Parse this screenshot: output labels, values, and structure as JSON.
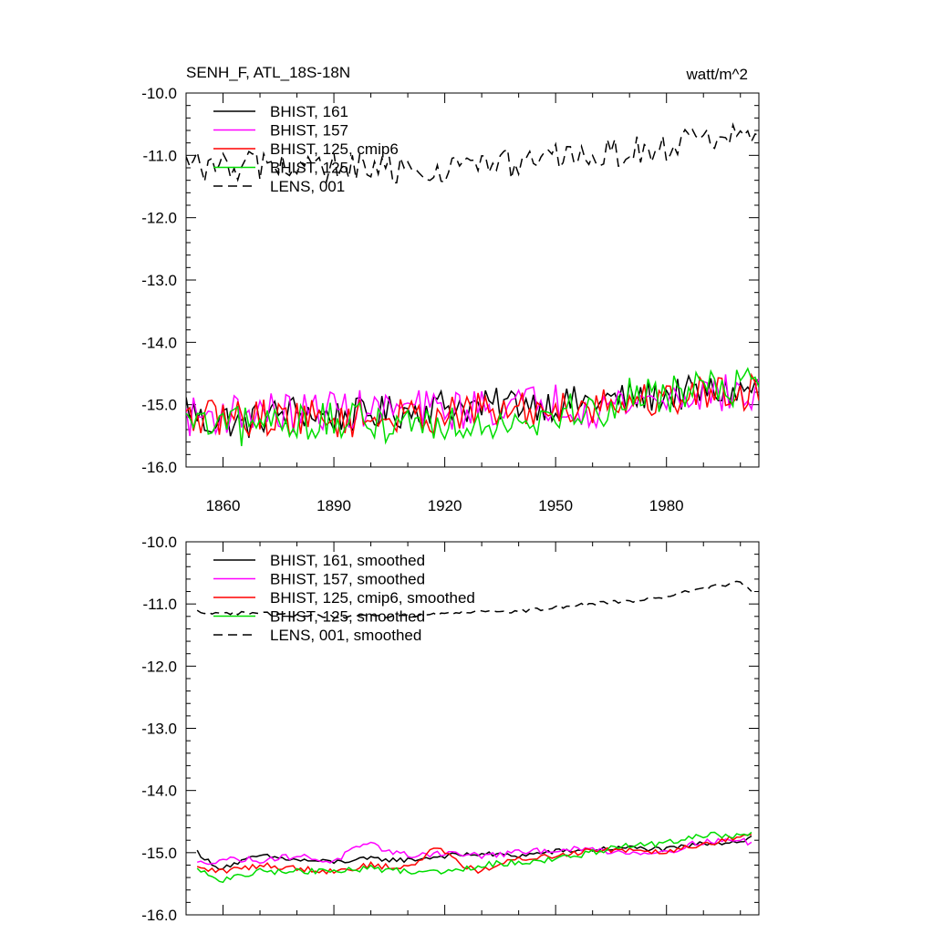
{
  "header": {
    "title": "SENH_F, ATL_18S-18N",
    "units": "watt/m^2"
  },
  "chart_data": [
    {
      "type": "line",
      "xlim": [
        1850,
        2005
      ],
      "ylim": [
        -16.0,
        -10.0
      ],
      "y_ticks": [
        "-10.0",
        "-11.0",
        "-12.0",
        "-13.0",
        "-14.0",
        "-15.0",
        "-16.0"
      ],
      "x_ticks": [
        "1860",
        "1890",
        "1920",
        "1950",
        "1980"
      ],
      "grid": false,
      "legend_position": "top-left",
      "series": [
        {
          "name": "BHIST, 161",
          "color": "#000000",
          "dash": false,
          "anchors": [
            [
              1850,
              -15.0
            ],
            [
              1855,
              -15.3
            ],
            [
              1860,
              -15.2
            ],
            [
              1865,
              -15.35
            ],
            [
              1870,
              -15.2
            ],
            [
              1880,
              -15.1
            ],
            [
              1890,
              -15.2
            ],
            [
              1900,
              -15.15
            ],
            [
              1910,
              -15.1
            ],
            [
              1920,
              -15.0
            ],
            [
              1930,
              -15.05
            ],
            [
              1940,
              -14.95
            ],
            [
              1950,
              -15.0
            ],
            [
              1960,
              -14.95
            ],
            [
              1970,
              -14.9
            ],
            [
              1980,
              -14.85
            ],
            [
              1990,
              -14.8
            ],
            [
              2000,
              -14.8
            ],
            [
              2005,
              -14.7
            ]
          ],
          "noise": 0.28
        },
        {
          "name": "BHIST, 157",
          "color": "#ff00ff",
          "dash": false,
          "anchors": [
            [
              1850,
              -15.2
            ],
            [
              1860,
              -15.15
            ],
            [
              1870,
              -15.1
            ],
            [
              1880,
              -15.15
            ],
            [
              1890,
              -15.05
            ],
            [
              1900,
              -15.1
            ],
            [
              1910,
              -15.05
            ],
            [
              1920,
              -15.1
            ],
            [
              1930,
              -15.05
            ],
            [
              1940,
              -15.0
            ],
            [
              1950,
              -14.95
            ],
            [
              1960,
              -15.05
            ],
            [
              1970,
              -14.95
            ],
            [
              1980,
              -14.9
            ],
            [
              1990,
              -14.8
            ],
            [
              2000,
              -14.85
            ],
            [
              2005,
              -14.85
            ]
          ],
          "noise": 0.32
        },
        {
          "name": "BHIST, 125, cmip6",
          "color": "#ff0000",
          "dash": false,
          "anchors": [
            [
              1850,
              -15.25
            ],
            [
              1860,
              -15.2
            ],
            [
              1870,
              -15.2
            ],
            [
              1880,
              -15.2
            ],
            [
              1890,
              -15.25
            ],
            [
              1900,
              -15.2
            ],
            [
              1910,
              -15.2
            ],
            [
              1920,
              -15.15
            ],
            [
              1930,
              -15.1
            ],
            [
              1940,
              -15.1
            ],
            [
              1950,
              -15.05
            ],
            [
              1960,
              -15.0
            ],
            [
              1970,
              -14.95
            ],
            [
              1980,
              -14.9
            ],
            [
              1990,
              -14.8
            ],
            [
              2000,
              -14.8
            ],
            [
              2005,
              -14.75
            ]
          ],
          "noise": 0.3
        },
        {
          "name": "BHIST, 125",
          "color": "#00dd00",
          "dash": false,
          "anchors": [
            [
              1850,
              -15.3
            ],
            [
              1860,
              -15.4
            ],
            [
              1870,
              -15.3
            ],
            [
              1880,
              -15.25
            ],
            [
              1890,
              -15.3
            ],
            [
              1900,
              -15.3
            ],
            [
              1910,
              -15.25
            ],
            [
              1920,
              -15.3
            ],
            [
              1930,
              -15.25
            ],
            [
              1940,
              -15.2
            ],
            [
              1950,
              -15.15
            ],
            [
              1960,
              -15.1
            ],
            [
              1970,
              -14.9
            ],
            [
              1980,
              -14.8
            ],
            [
              1990,
              -14.75
            ],
            [
              2000,
              -14.7
            ],
            [
              2005,
              -14.7
            ]
          ],
          "noise": 0.33
        },
        {
          "name": "LENS, 001",
          "color": "#000000",
          "dash": true,
          "anchors": [
            [
              1850,
              -11.15
            ],
            [
              1860,
              -11.2
            ],
            [
              1870,
              -11.15
            ],
            [
              1880,
              -11.2
            ],
            [
              1890,
              -11.2
            ],
            [
              1900,
              -11.25
            ],
            [
              1910,
              -11.25
            ],
            [
              1920,
              -11.2
            ],
            [
              1930,
              -11.15
            ],
            [
              1940,
              -11.15
            ],
            [
              1950,
              -11.05
            ],
            [
              1960,
              -11.0
            ],
            [
              1970,
              -10.95
            ],
            [
              1980,
              -10.85
            ],
            [
              1990,
              -10.75
            ],
            [
              2000,
              -10.65
            ],
            [
              2005,
              -10.8
            ]
          ],
          "noise": 0.25
        }
      ]
    },
    {
      "type": "line",
      "xlim": [
        1850,
        2005
      ],
      "ylim": [
        -16.0,
        -10.0
      ],
      "y_ticks": [
        "-10.0",
        "-11.0",
        "-12.0",
        "-13.0",
        "-14.0",
        "-15.0",
        "-16.0"
      ],
      "grid": false,
      "legend_position": "top-left",
      "series": [
        {
          "name": "BHIST, 161, smoothed",
          "color": "#000000",
          "dash": false,
          "anchors": [
            [
              1853,
              -14.98
            ],
            [
              1858,
              -15.25
            ],
            [
              1863,
              -15.18
            ],
            [
              1870,
              -15.05
            ],
            [
              1880,
              -15.12
            ],
            [
              1890,
              -15.15
            ],
            [
              1900,
              -15.1
            ],
            [
              1910,
              -15.12
            ],
            [
              1920,
              -15.05
            ],
            [
              1930,
              -15.02
            ],
            [
              1940,
              -15.05
            ],
            [
              1950,
              -14.98
            ],
            [
              1960,
              -14.95
            ],
            [
              1970,
              -14.92
            ],
            [
              1980,
              -14.95
            ],
            [
              1990,
              -14.85
            ],
            [
              2000,
              -14.82
            ],
            [
              2003,
              -14.75
            ]
          ],
          "noise": 0.04
        },
        {
          "name": "BHIST, 157, smoothed",
          "color": "#ff00ff",
          "dash": false,
          "anchors": [
            [
              1853,
              -15.18
            ],
            [
              1860,
              -15.1
            ],
            [
              1870,
              -15.12
            ],
            [
              1880,
              -15.05
            ],
            [
              1890,
              -15.15
            ],
            [
              1895,
              -14.95
            ],
            [
              1900,
              -14.88
            ],
            [
              1910,
              -15.05
            ],
            [
              1920,
              -15.0
            ],
            [
              1930,
              -15.05
            ],
            [
              1940,
              -15.0
            ],
            [
              1950,
              -14.95
            ],
            [
              1960,
              -14.95
            ],
            [
              1970,
              -15.0
            ],
            [
              1980,
              -14.98
            ],
            [
              1990,
              -14.82
            ],
            [
              2000,
              -14.8
            ],
            [
              2003,
              -14.85
            ]
          ],
          "noise": 0.05
        },
        {
          "name": "BHIST, 125, cmip6, smoothed",
          "color": "#ff0000",
          "dash": false,
          "anchors": [
            [
              1853,
              -15.25
            ],
            [
              1860,
              -15.3
            ],
            [
              1870,
              -15.2
            ],
            [
              1880,
              -15.25
            ],
            [
              1890,
              -15.3
            ],
            [
              1900,
              -15.2
            ],
            [
              1910,
              -15.25
            ],
            [
              1918,
              -14.9
            ],
            [
              1925,
              -15.2
            ],
            [
              1930,
              -15.3
            ],
            [
              1940,
              -15.1
            ],
            [
              1950,
              -15.05
            ],
            [
              1960,
              -14.95
            ],
            [
              1970,
              -14.95
            ],
            [
              1980,
              -14.98
            ],
            [
              1990,
              -14.85
            ],
            [
              2000,
              -14.75
            ],
            [
              2003,
              -14.72
            ]
          ],
          "noise": 0.05
        },
        {
          "name": "BHIST, 125, smoothed",
          "color": "#00dd00",
          "dash": false,
          "anchors": [
            [
              1853,
              -15.28
            ],
            [
              1860,
              -15.45
            ],
            [
              1870,
              -15.3
            ],
            [
              1880,
              -15.3
            ],
            [
              1890,
              -15.3
            ],
            [
              1900,
              -15.25
            ],
            [
              1910,
              -15.3
            ],
            [
              1920,
              -15.3
            ],
            [
              1930,
              -15.2
            ],
            [
              1940,
              -15.15
            ],
            [
              1950,
              -15.1
            ],
            [
              1960,
              -15.0
            ],
            [
              1970,
              -14.88
            ],
            [
              1980,
              -14.85
            ],
            [
              1990,
              -14.72
            ],
            [
              2000,
              -14.72
            ],
            [
              2003,
              -14.68
            ]
          ],
          "noise": 0.05
        },
        {
          "name": "LENS, 001, smoothed",
          "color": "#000000",
          "dash": true,
          "anchors": [
            [
              1853,
              -11.12
            ],
            [
              1860,
              -11.15
            ],
            [
              1870,
              -11.15
            ],
            [
              1880,
              -11.18
            ],
            [
              1890,
              -11.2
            ],
            [
              1900,
              -11.2
            ],
            [
              1910,
              -11.2
            ],
            [
              1920,
              -11.15
            ],
            [
              1930,
              -11.12
            ],
            [
              1940,
              -11.12
            ],
            [
              1950,
              -11.05
            ],
            [
              1960,
              -11.0
            ],
            [
              1970,
              -10.95
            ],
            [
              1980,
              -10.88
            ],
            [
              1990,
              -10.75
            ],
            [
              2000,
              -10.65
            ],
            [
              2003,
              -10.8
            ]
          ],
          "noise": 0.03
        }
      ]
    }
  ]
}
